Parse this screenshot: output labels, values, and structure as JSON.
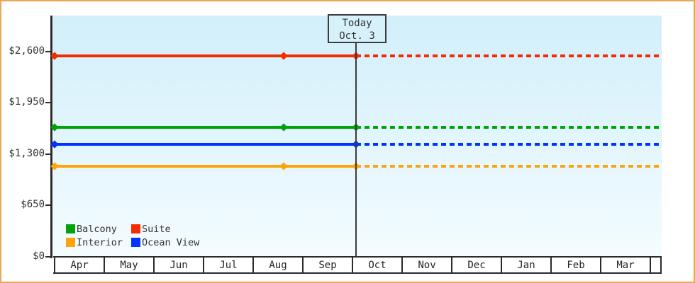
{
  "chart_data": {
    "type": "line",
    "title": "",
    "xlabel": "",
    "ylabel": "",
    "categories": [
      "Apr",
      "May",
      "Jun",
      "Jul",
      "Aug",
      "Sep",
      "Oct",
      "Nov",
      "Dec",
      "Jan",
      "Feb",
      "Mar"
    ],
    "y_ticks": [
      {
        "label": "$0",
        "value": 0
      },
      {
        "label": "$650",
        "value": 650
      },
      {
        "label": "$1,300",
        "value": 1300
      },
      {
        "label": "$1,950",
        "value": 1950
      },
      {
        "label": "$2,600",
        "value": 2600
      }
    ],
    "ylim": [
      0,
      3050
    ],
    "grid": false,
    "legend_position": "bottom-left-inside",
    "line_style_note": "solid from Apr 1 until today marker, dotted projection after today",
    "series": [
      {
        "name": "Suite",
        "color": "#f52c00",
        "value": 2540,
        "marker_points": [
          {
            "month": "Apr",
            "day": 1
          },
          {
            "month": "Aug",
            "day": 20
          },
          {
            "month": "Oct",
            "day": 3
          }
        ]
      },
      {
        "name": "Balcony",
        "color": "#00a30b",
        "value": 1635,
        "marker_points": [
          {
            "month": "Apr",
            "day": 1
          },
          {
            "month": "Aug",
            "day": 20
          },
          {
            "month": "Oct",
            "day": 3
          }
        ]
      },
      {
        "name": "Ocean View",
        "color": "#0433ff",
        "value": 1425,
        "marker_points": [
          {
            "month": "Apr",
            "day": 1
          },
          {
            "month": "Oct",
            "day": 3
          }
        ]
      },
      {
        "name": "Interior",
        "color": "#ffa408",
        "value": 1145,
        "marker_points": [
          {
            "month": "Apr",
            "day": 1
          },
          {
            "month": "Aug",
            "day": 20
          },
          {
            "month": "Oct",
            "day": 3
          }
        ]
      }
    ],
    "today_marker": {
      "line1": "Today",
      "line2": "Oct. 3",
      "month": "Oct",
      "day": 3
    },
    "legend_rows": [
      [
        "Balcony",
        "Suite"
      ],
      [
        "Interior",
        "Ocean View"
      ]
    ]
  },
  "colors": {
    "page_border": "#e9a75b",
    "plot_gradient_top": "#d2effb",
    "plot_gradient_bottom": "#f4fcff",
    "axis": "#2b2b2b",
    "text": "#333333",
    "today_box_fill": "#d7f1fb"
  }
}
